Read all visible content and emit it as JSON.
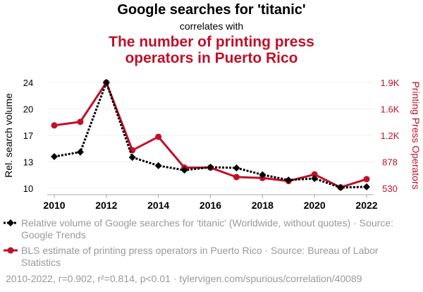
{
  "header": {
    "title": "Google searches for 'titanic'",
    "subtitle": "correlates with",
    "title2_line1": "The number of printing press",
    "title2_line2": "operators in Puerto Rico"
  },
  "legend": {
    "series1": "Relative volume of Google searches for 'titanic' (Worldwide, without quotes) · Source: Google Trends",
    "series2": "BLS estimate of printing press operators in Puerto Rico · Source: Bureau of Labor Statistics"
  },
  "footer": "2010-2022, r=0.902, r²=0.814, p<0.01 · tylervigen.com/spurious/correlation/40089",
  "colors": {
    "series1": "#000000",
    "series2": "#c0102a"
  },
  "chart_data": {
    "type": "line",
    "x": [
      2010,
      2011,
      2012,
      2013,
      2014,
      2015,
      2016,
      2017,
      2018,
      2019,
      2020,
      2021,
      2022
    ],
    "x_ticks": [
      "2010",
      "2012",
      "2014",
      "2016",
      "2018",
      "2020",
      "2022"
    ],
    "ylabel": "Rel. search volume",
    "ylabel_right": "Printing Press Operators",
    "ylim": [
      10,
      24
    ],
    "ylim_right": [
      530,
      1900
    ],
    "y_ticks": [
      "24",
      "20",
      "17",
      "13",
      "10"
    ],
    "y_ticks_right": [
      "1.9K",
      "1.6K",
      "1.2K",
      "878",
      "530"
    ],
    "series": [
      {
        "name": "Google searches for 'titanic'",
        "axis": "left",
        "values": [
          14.2,
          14.8,
          24,
          14.1,
          13.0,
          12.4,
          12.8,
          12.7,
          11.8,
          11.1,
          11.3,
          10.1,
          10.2
        ]
      },
      {
        "name": "Printing press operators in Puerto Rico",
        "axis": "right",
        "values": [
          1345,
          1391,
          1900,
          1023,
          1197,
          798,
          798,
          676,
          664,
          624,
          710,
          542,
          649
        ]
      }
    ]
  }
}
